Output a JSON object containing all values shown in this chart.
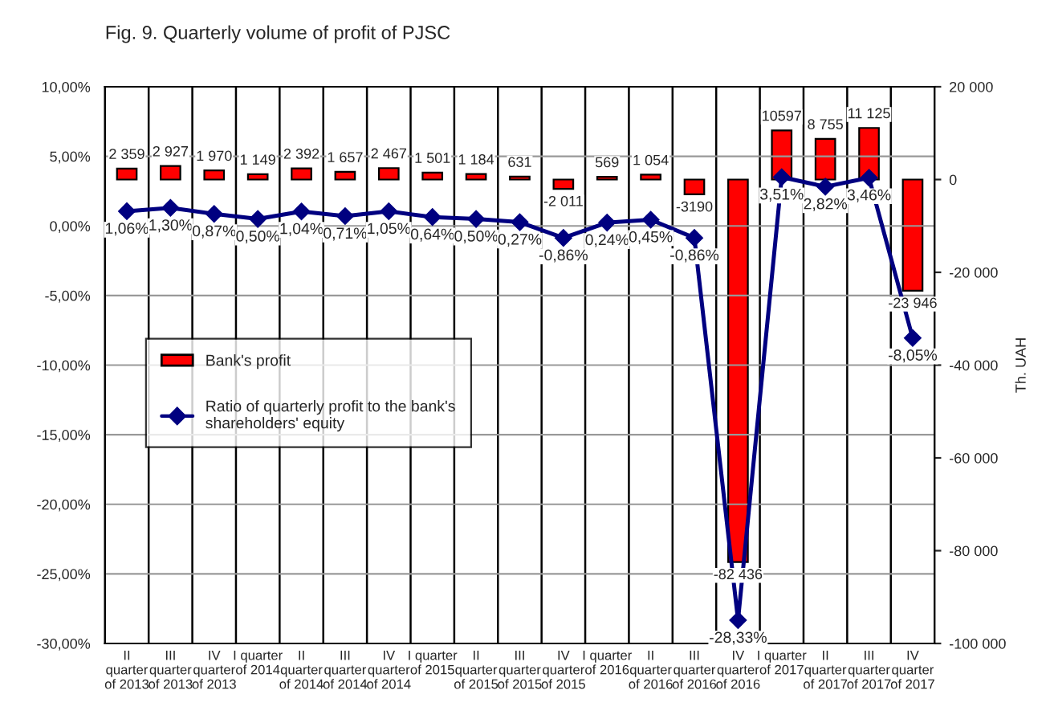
{
  "chart_data": {
    "type": "bar",
    "title": "Fig. 9. Quarterly volume of profit of PJSC",
    "categories": [
      "II quarter of 2013",
      "III quarter of 2013",
      "IV quarter of 2013",
      "I quarter of 2014",
      "II quarter of 2014",
      "III quarter of 2014",
      "IV quarter of 2014",
      "I quarter of 2015",
      "II quarter of 2015",
      "III quarter of 2015",
      "IV quarter of 2015",
      "I quarter of 2016",
      "II quarter of 2016",
      "III quarter of 2016",
      "IV quarter of 2016",
      "I quarter of 2017",
      "II quarter of 2017",
      "III quarter of 2017",
      "IV quarter of 2017"
    ],
    "series": [
      {
        "name": "Bank's profit",
        "axis": "y2",
        "color": "#ff0000",
        "values": [
          2359,
          2927,
          1970,
          1149,
          2392,
          1657,
          2467,
          1501,
          1184,
          631,
          -2011,
          569,
          1054,
          -3190,
          -82436,
          10597,
          8755,
          11125,
          -23946
        ],
        "value_labels": [
          "2 359",
          "2 927",
          "1 970",
          "1 149",
          "2 392",
          "1 657",
          "2 467",
          "1 501",
          "1 184",
          "631",
          "-2 011",
          "569",
          "1 054",
          "-3190",
          "-82 436",
          "10597",
          "8 755",
          "11 125",
          "-23 946"
        ]
      },
      {
        "name": "Ratio of quarterly profit to the bank's shareholders' equity",
        "type": "line",
        "color": "#000080",
        "marker": "diamond",
        "values": [
          1.06,
          1.3,
          0.87,
          0.5,
          1.04,
          0.71,
          1.05,
          0.64,
          0.5,
          0.27,
          -0.86,
          0.24,
          0.45,
          -0.86,
          -28.33,
          3.51,
          2.82,
          3.46,
          -8.05
        ],
        "value_labels": [
          "1,06%",
          "1,30%",
          "0,87%",
          "0,50%",
          "1,04%",
          "0,71%",
          "1,05%",
          "0,64%",
          "0,50%",
          "0,27%",
          "-0,86%",
          "0,24%",
          "0,45%",
          "-0,86%",
          "-28,33%",
          "3,51%",
          "2,82%",
          "3,46%",
          "-8,05%"
        ]
      }
    ],
    "ylim": [
      -30,
      10
    ],
    "yticks": [
      {
        "value": -30,
        "label": "-30,00%"
      },
      {
        "value": -25,
        "label": "-25,00%"
      },
      {
        "value": -20,
        "label": "-20,00%"
      },
      {
        "value": -15,
        "label": "-15,00%"
      },
      {
        "value": -10,
        "label": "-10,00%"
      },
      {
        "value": -5,
        "label": "-5,00%"
      },
      {
        "value": 0,
        "label": "0,00%"
      },
      {
        "value": 5,
        "label": "5,00%"
      },
      {
        "value": 10,
        "label": "10,00%"
      }
    ],
    "y2lim": [
      -100000,
      20000
    ],
    "y2ticks": [
      {
        "value": -100000,
        "label": "-100 000"
      },
      {
        "value": -80000,
        "label": "-80 000"
      },
      {
        "value": -60000,
        "label": "-60 000"
      },
      {
        "value": -40000,
        "label": "-40 000"
      },
      {
        "value": -20000,
        "label": "-20 000"
      },
      {
        "value": 0,
        "label": "0"
      },
      {
        "value": 20000,
        "label": "20 000"
      }
    ],
    "y2label": "Th. UAH",
    "grid": "y",
    "legend": "left"
  }
}
